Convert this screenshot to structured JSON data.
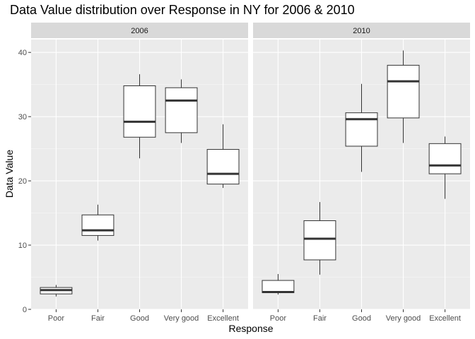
{
  "chart_data": {
    "type": "boxplot",
    "title": "Data Value distribution over Response in NY for 2006 & 2010",
    "xlabel": "Response",
    "ylabel": "Data Value",
    "ylim": [
      0,
      42
    ],
    "yticks": [
      0,
      10,
      20,
      30,
      40
    ],
    "categories": [
      "Poor",
      "Fair",
      "Good",
      "Very good",
      "Excellent"
    ],
    "grid": true,
    "panels": [
      {
        "label": "2006",
        "boxes": [
          {
            "category": "Poor",
            "min": 2.0,
            "q1": 2.4,
            "median": 3.0,
            "q3": 3.4,
            "max": 3.8
          },
          {
            "category": "Fair",
            "min": 10.7,
            "q1": 11.5,
            "median": 12.3,
            "q3": 14.7,
            "max": 16.3
          },
          {
            "category": "Good",
            "min": 23.5,
            "q1": 26.8,
            "median": 29.2,
            "q3": 34.8,
            "max": 36.6
          },
          {
            "category": "Very good",
            "min": 25.9,
            "q1": 27.5,
            "median": 32.5,
            "q3": 34.5,
            "max": 35.8
          },
          {
            "category": "Excellent",
            "min": 18.9,
            "q1": 19.5,
            "median": 21.1,
            "q3": 24.9,
            "max": 28.8
          }
        ]
      },
      {
        "label": "2010",
        "boxes": [
          {
            "category": "Poor",
            "min": 2.3,
            "q1": 2.6,
            "median": 2.7,
            "q3": 4.5,
            "max": 5.5
          },
          {
            "category": "Fair",
            "min": 5.4,
            "q1": 7.7,
            "median": 11.0,
            "q3": 13.8,
            "max": 16.7
          },
          {
            "category": "Good",
            "min": 21.4,
            "q1": 25.4,
            "median": 29.6,
            "q3": 30.6,
            "max": 35.1
          },
          {
            "category": "Very good",
            "min": 25.9,
            "q1": 29.8,
            "median": 35.5,
            "q3": 38.0,
            "max": 40.3
          },
          {
            "category": "Excellent",
            "min": 17.2,
            "q1": 21.1,
            "median": 22.4,
            "q3": 25.8,
            "max": 26.9
          }
        ]
      }
    ]
  },
  "colors": {
    "panel_background": "#ebebeb",
    "grid_major": "#ffffff",
    "strip_background": "#d9d9d9",
    "box_fill": "#ffffff",
    "box_stroke": "#333333",
    "tick_mark": "#333333"
  }
}
